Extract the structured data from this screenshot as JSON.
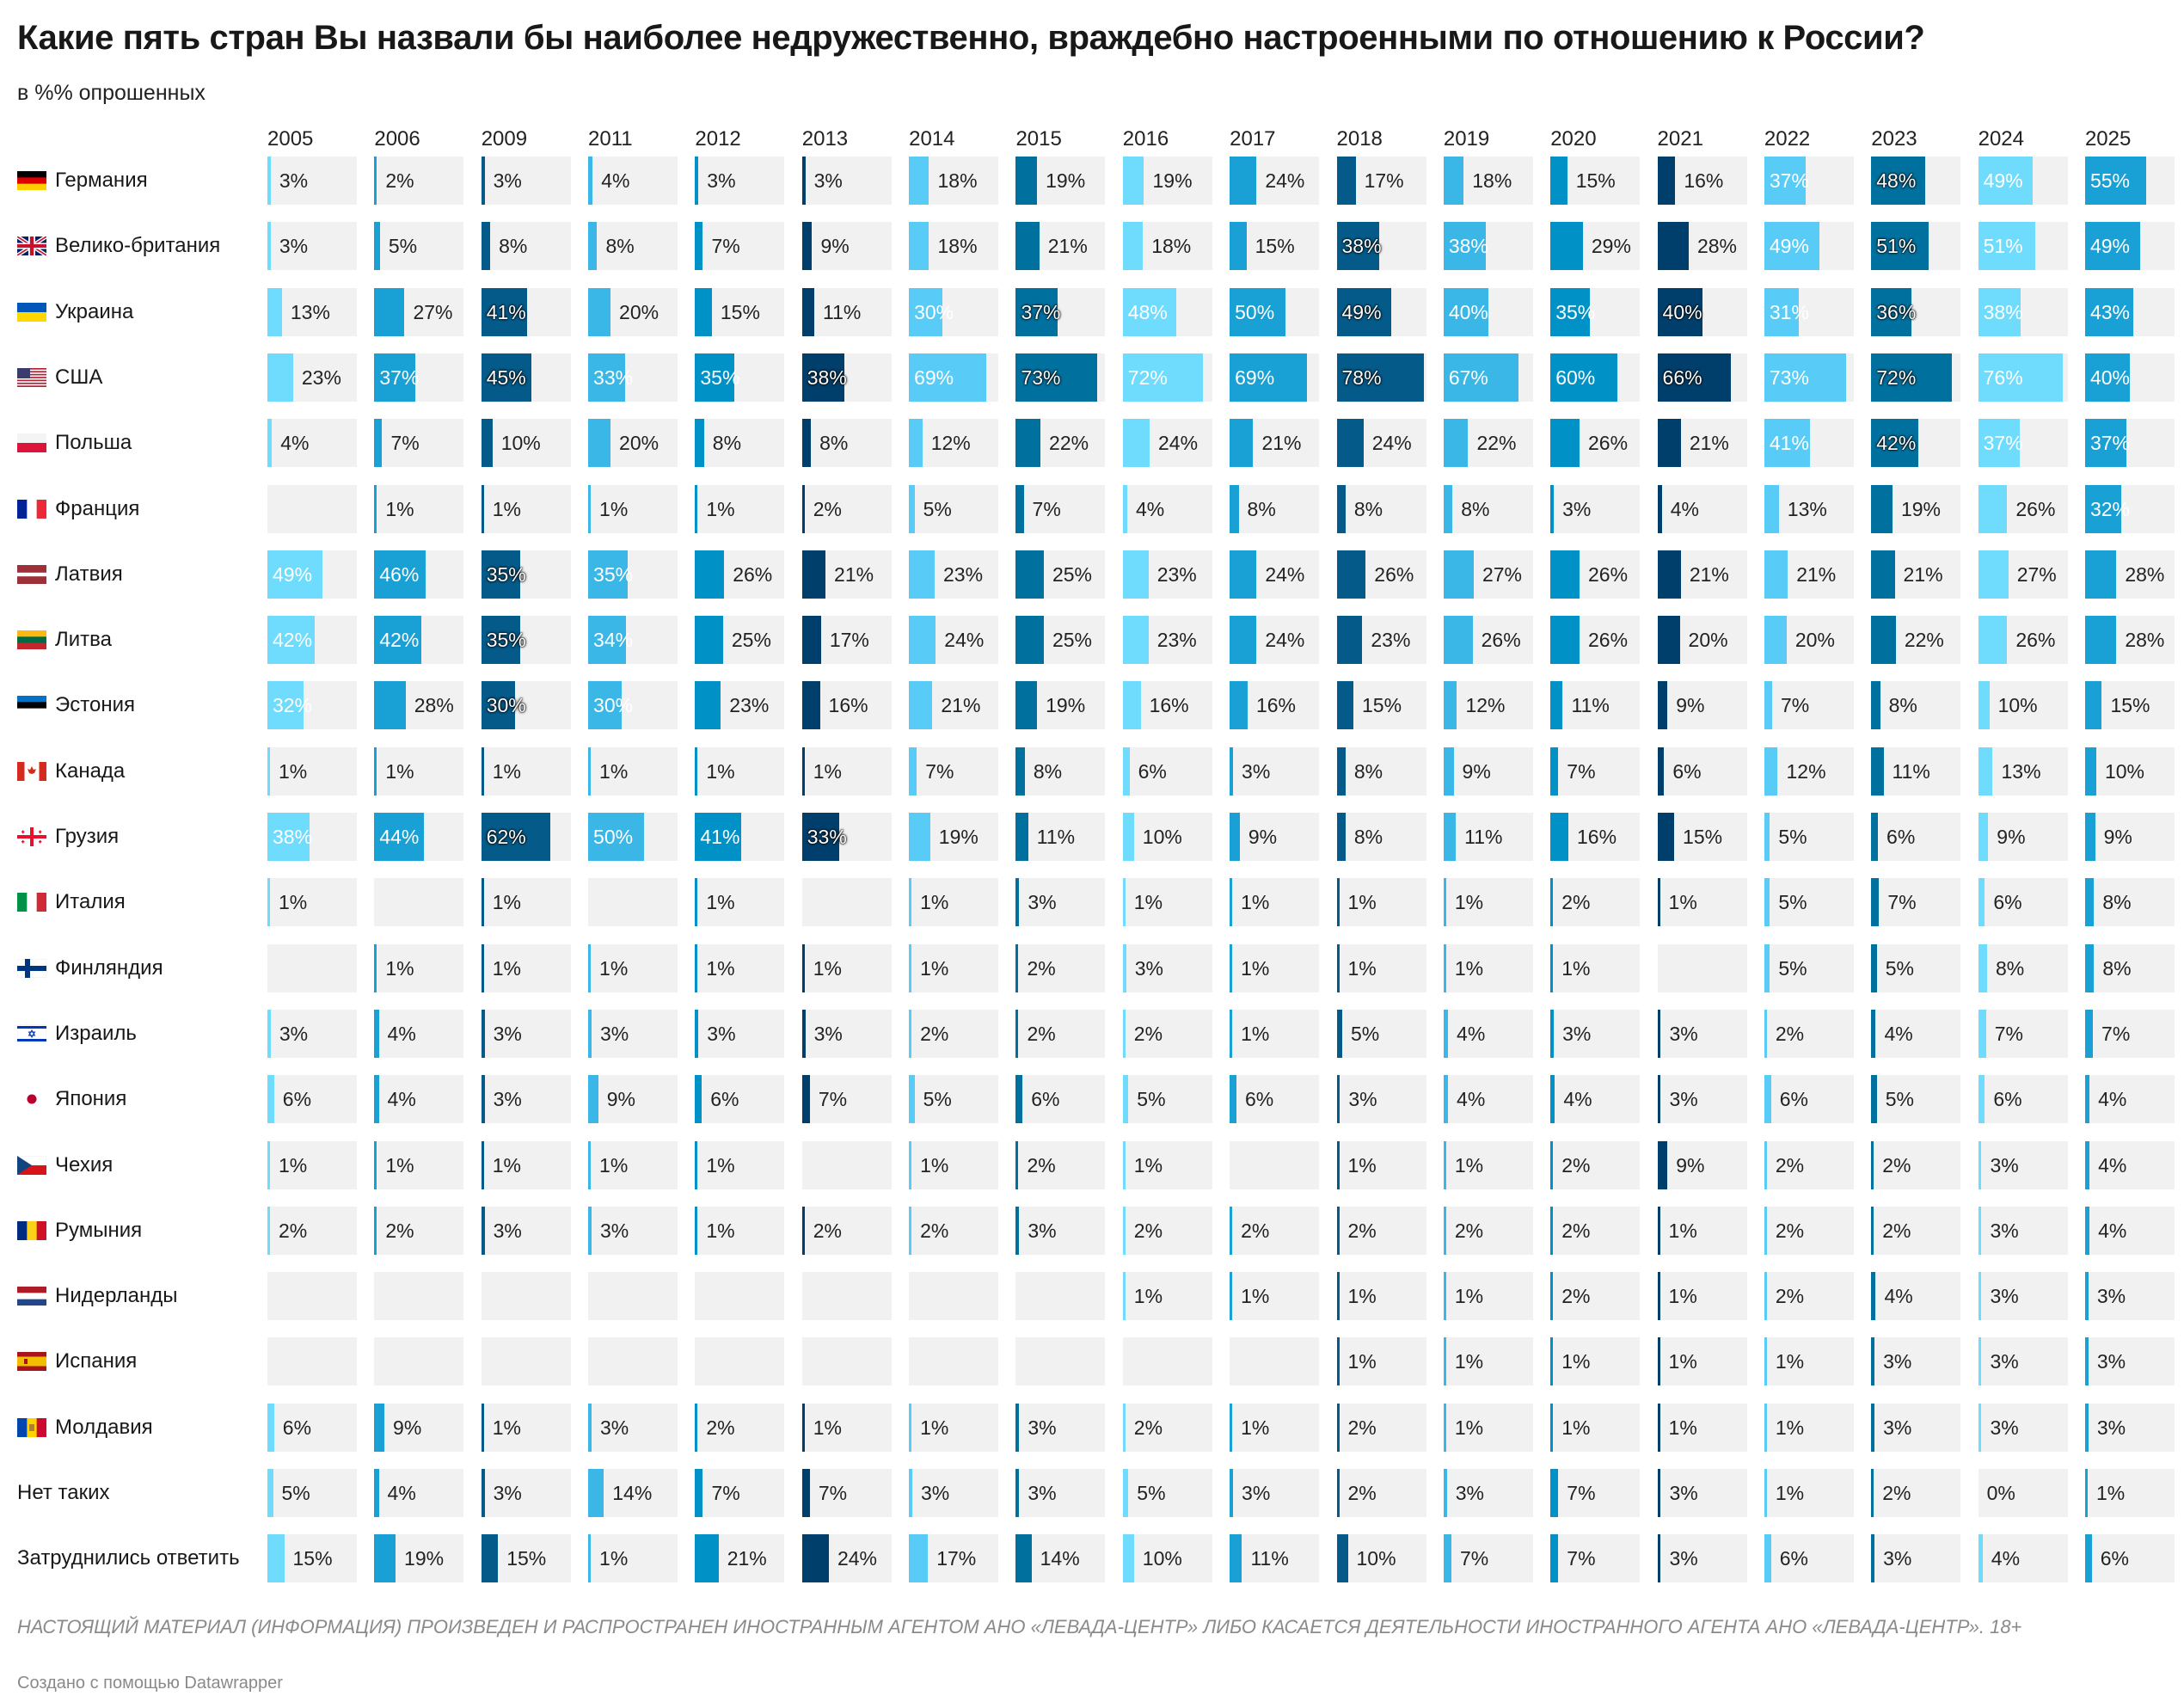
{
  "title": "Какие пять стран Вы назвали бы наиболее недружественно, враждебно настроенными по отношению к России?",
  "subtitle": "в %% опрошенных",
  "notes": "НАСТОЯЩИЙ МАТЕРИАЛ (ИНФОРМАЦИЯ) ПРОИЗВЕДЕН И РАСПРОСТРАНЕН ИНОСТРАННЫМ АГЕНТОМ АНО «ЛЕВАДА-ЦЕНТР» ЛИБО КАСАЕТСЯ ДЕЯТЕЛЬНОСТИ ИНОСТРАННОГО АГЕНТА АНО «ЛЕВАДА-ЦЕНТР». 18+",
  "credit": "Создано с помощью Datawrapper",
  "colors": {
    "cell_bg": "#f1f1f1",
    "bar_palette": [
      "#6fdcfd",
      "#19a0d4",
      "#045a89",
      "#3ab7e6",
      "#0092c6",
      "#003f6c",
      "#58ccf7",
      "#00709e"
    ],
    "text": "#181818",
    "muted": "#8a8a8a"
  },
  "chart_data": {
    "type": "table",
    "value_unit": "%",
    "x_max": 100,
    "years": [
      "2005",
      "2006",
      "2009",
      "2011",
      "2012",
      "2013",
      "2014",
      "2015",
      "2016",
      "2017",
      "2018",
      "2019",
      "2020",
      "2021",
      "2022",
      "2023",
      "2024",
      "2025"
    ],
    "rows": [
      {
        "label": "Германия",
        "flag": "germany-flag",
        "values": [
          3,
          2,
          3,
          4,
          3,
          3,
          18,
          19,
          19,
          24,
          17,
          18,
          15,
          16,
          37,
          48,
          49,
          55
        ]
      },
      {
        "label": "Велико-британия",
        "flag": "uk-flag",
        "values": [
          3,
          5,
          8,
          8,
          7,
          9,
          18,
          21,
          18,
          15,
          38,
          38,
          29,
          28,
          49,
          51,
          51,
          49
        ]
      },
      {
        "label": "Украина",
        "flag": "ukraine-flag",
        "values": [
          13,
          27,
          41,
          20,
          15,
          11,
          30,
          37,
          48,
          50,
          49,
          40,
          35,
          40,
          31,
          36,
          38,
          43
        ]
      },
      {
        "label": "США",
        "flag": "usa-flag",
        "values": [
          23,
          37,
          45,
          33,
          35,
          38,
          69,
          73,
          72,
          69,
          78,
          67,
          60,
          66,
          73,
          72,
          76,
          40
        ]
      },
      {
        "label": "Польша",
        "flag": "poland-flag",
        "values": [
          4,
          7,
          10,
          20,
          8,
          8,
          12,
          22,
          24,
          21,
          24,
          22,
          26,
          21,
          41,
          42,
          37,
          37
        ]
      },
      {
        "label": "Франция",
        "flag": "france-flag",
        "values": [
          null,
          1,
          1,
          1,
          1,
          2,
          5,
          7,
          4,
          8,
          8,
          8,
          3,
          4,
          13,
          19,
          26,
          32
        ]
      },
      {
        "label": "Латвия",
        "flag": "latvia-flag",
        "values": [
          49,
          46,
          35,
          35,
          26,
          21,
          23,
          25,
          23,
          24,
          26,
          27,
          26,
          21,
          21,
          21,
          27,
          28
        ]
      },
      {
        "label": "Литва",
        "flag": "lithuania-flag",
        "values": [
          42,
          42,
          35,
          34,
          25,
          17,
          24,
          25,
          23,
          24,
          23,
          26,
          26,
          20,
          20,
          22,
          26,
          28
        ]
      },
      {
        "label": "Эстония",
        "flag": "estonia-flag",
        "values": [
          32,
          28,
          30,
          30,
          23,
          16,
          21,
          19,
          16,
          16,
          15,
          12,
          11,
          9,
          7,
          8,
          10,
          15
        ]
      },
      {
        "label": "Канада",
        "flag": "canada-flag",
        "values": [
          1,
          1,
          1,
          1,
          1,
          1,
          7,
          8,
          6,
          3,
          8,
          9,
          7,
          6,
          12,
          11,
          13,
          10
        ]
      },
      {
        "label": "Грузия",
        "flag": "georgia-flag",
        "values": [
          38,
          44,
          62,
          50,
          41,
          33,
          19,
          11,
          10,
          9,
          8,
          11,
          16,
          15,
          5,
          6,
          9,
          9
        ]
      },
      {
        "label": "Италия",
        "flag": "italy-flag",
        "values": [
          1,
          null,
          1,
          null,
          1,
          null,
          1,
          3,
          1,
          1,
          1,
          1,
          2,
          1,
          5,
          7,
          6,
          8
        ]
      },
      {
        "label": "Финляндия",
        "flag": "finland-flag",
        "values": [
          null,
          1,
          1,
          1,
          1,
          1,
          1,
          2,
          3,
          1,
          1,
          1,
          1,
          null,
          5,
          5,
          8,
          8
        ]
      },
      {
        "label": "Израиль",
        "flag": "israel-flag",
        "values": [
          3,
          4,
          3,
          3,
          3,
          3,
          2,
          2,
          2,
          1,
          5,
          4,
          3,
          3,
          2,
          4,
          7,
          7
        ]
      },
      {
        "label": "Япония",
        "flag": "japan-flag",
        "values": [
          6,
          4,
          3,
          9,
          6,
          7,
          5,
          6,
          5,
          6,
          3,
          4,
          4,
          3,
          6,
          5,
          6,
          4
        ]
      },
      {
        "label": "Чехия",
        "flag": "czech-flag",
        "values": [
          1,
          1,
          1,
          1,
          1,
          null,
          1,
          2,
          1,
          null,
          1,
          1,
          2,
          9,
          2,
          2,
          3,
          4
        ]
      },
      {
        "label": "Румыния",
        "flag": "romania-flag",
        "values": [
          2,
          2,
          3,
          3,
          1,
          2,
          2,
          3,
          2,
          2,
          2,
          2,
          2,
          1,
          2,
          2,
          3,
          4
        ]
      },
      {
        "label": "Нидерланды",
        "flag": "netherlands-flag",
        "values": [
          null,
          null,
          null,
          null,
          null,
          null,
          null,
          null,
          1,
          1,
          1,
          1,
          2,
          1,
          2,
          4,
          3,
          3
        ]
      },
      {
        "label": "Испания",
        "flag": "spain-flag",
        "values": [
          null,
          null,
          null,
          null,
          null,
          null,
          null,
          null,
          null,
          null,
          1,
          1,
          1,
          1,
          1,
          3,
          3,
          3
        ]
      },
      {
        "label": "Молдавия",
        "flag": "moldova-flag",
        "values": [
          6,
          9,
          1,
          3,
          2,
          1,
          1,
          3,
          2,
          1,
          2,
          1,
          1,
          1,
          1,
          3,
          3,
          3
        ]
      },
      {
        "label": "Нет таких",
        "flag": null,
        "values": [
          5,
          4,
          3,
          14,
          7,
          7,
          3,
          3,
          5,
          3,
          2,
          3,
          7,
          3,
          1,
          2,
          0,
          1
        ]
      },
      {
        "label": "Затруднились ответить",
        "flag": null,
        "values": [
          15,
          19,
          15,
          1,
          21,
          24,
          17,
          14,
          10,
          11,
          10,
          7,
          7,
          3,
          6,
          3,
          4,
          6
        ]
      }
    ]
  }
}
